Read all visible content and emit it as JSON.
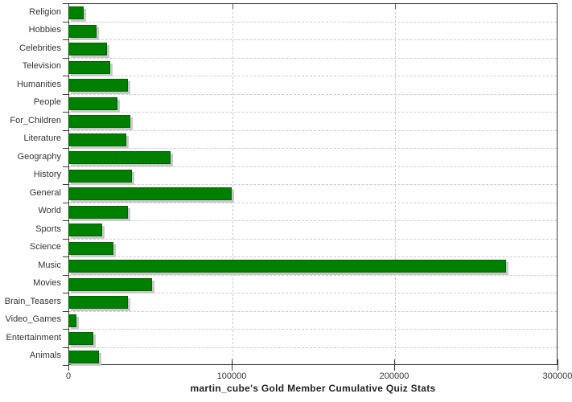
{
  "chart_data": {
    "type": "bar",
    "orientation": "horizontal",
    "title": "martin_cube's Gold Member Cumulative Quiz Stats",
    "categories": [
      "Religion",
      "Hobbies",
      "Celebrities",
      "Television",
      "Humanities",
      "People",
      "For_Children",
      "Literature",
      "Geography",
      "History",
      "General",
      "World",
      "Sports",
      "Science",
      "Music",
      "Movies",
      "Brain_Teasers",
      "Video_Games",
      "Entertainment",
      "Animals"
    ],
    "values": [
      9000,
      17000,
      23000,
      25000,
      36000,
      29500,
      37500,
      35000,
      62000,
      38500,
      99500,
      36000,
      20000,
      27000,
      268000,
      51000,
      36000,
      4500,
      15000,
      18500
    ],
    "xlabel": "",
    "ylabel": "",
    "xlim": [
      0,
      300000
    ],
    "x_ticks": [
      0,
      100000,
      200000,
      300000
    ],
    "x_tick_labels": [
      "0",
      "100000",
      "200000",
      "300000"
    ],
    "grid": "dashed",
    "legend": "none",
    "colors": {
      "bar_fill": "#008000",
      "bar_border": "#006400",
      "bar_shadow": "#c9c9c9",
      "gridline": "#cccccc",
      "axis": "#3a3a3a",
      "text": "#333333"
    }
  }
}
